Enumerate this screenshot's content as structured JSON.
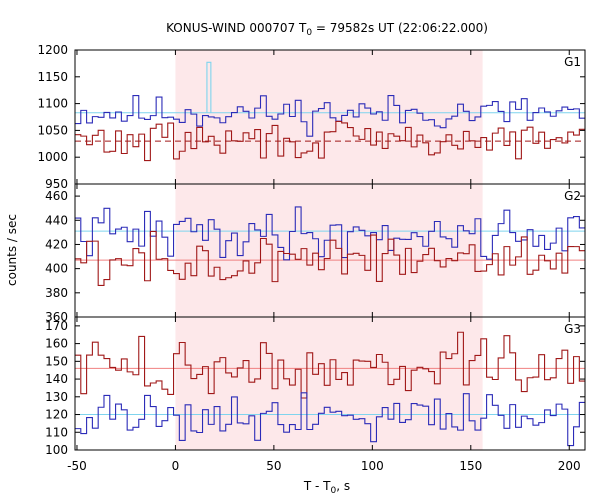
{
  "chart_data": {
    "type": "line",
    "title": "KONUS-WIND 000707 T₀ = 79582s UT (22:06:22.000)",
    "title_parts": {
      "prefix": "KONUS-WIND 000707 T",
      "subscript": "0",
      "suffix": " = 79582s UT (22:06:22.000)"
    },
    "xlabel_parts": {
      "prefix": "T - T",
      "subscript": "0",
      "suffix": ", s"
    },
    "ylabel": "counts / sec",
    "xlim": [
      -51,
      208
    ],
    "x_ticks": [
      -50,
      0,
      50,
      100,
      150,
      200
    ],
    "x_tick_labels": [
      "-50",
      "0",
      "50",
      "100",
      "150",
      "200"
    ],
    "highlight_interval": [
      0,
      156
    ],
    "highlight_color": "#fde8ea",
    "panels": [
      {
        "label": "G1",
        "ylim": [
          950,
          1200
        ],
        "y_ticks": [
          950,
          1000,
          1050,
          1100,
          1150,
          1200
        ],
        "y_tick_labels": [
          "950",
          "1000",
          "1050",
          "1100",
          "1150",
          "1200"
        ],
        "series": [
          {
            "color": "#2b2bb8",
            "background": 1083,
            "background_color": "#7fd4ee",
            "background_style": "solid",
            "mean": 1083,
            "amplitude": 16,
            "seed": 11
          },
          {
            "color": "#a01818",
            "background": 1030,
            "background_color": "#a01818",
            "background_style": "dashed",
            "mean": 1030,
            "amplitude": 18,
            "seed": 29
          },
          {
            "color": "#7fd4ee",
            "type": "spike",
            "x": [
              16,
              18
            ],
            "baseline": 1083,
            "peak": 1177
          }
        ]
      },
      {
        "label": "G2",
        "ylim": [
          360,
          470
        ],
        "y_ticks": [
          360,
          380,
          400,
          420,
          440,
          460
        ],
        "y_tick_labels": [
          "360",
          "380",
          "400",
          "420",
          "440",
          "460"
        ],
        "series": [
          {
            "color": "#2b2bb8",
            "background": 431,
            "background_color": "#7fd4ee",
            "background_style": "solid",
            "mean": 429,
            "amplitude": 10,
            "seed": 41
          },
          {
            "color": "#a01818",
            "background": 407,
            "background_color": "#f08080",
            "background_style": "solid",
            "mean": 407,
            "amplitude": 10,
            "seed": 57
          }
        ]
      },
      {
        "label": "G3",
        "ylim": [
          100,
          175
        ],
        "y_ticks": [
          100,
          110,
          120,
          130,
          140,
          150,
          160,
          170
        ],
        "y_tick_labels": [
          "100",
          "110",
          "120",
          "130",
          "140",
          "150",
          "160",
          "170"
        ],
        "series": [
          {
            "color": "#a01818",
            "background": 146,
            "background_color": "#f08080",
            "background_style": "solid",
            "mean": 146,
            "amplitude": 8,
            "seed": 73
          },
          {
            "color": "#2b2bb8",
            "background": 120,
            "background_color": "#7fd4ee",
            "background_style": "solid",
            "mean": 120,
            "amplitude": 7,
            "seed": 91
          }
        ]
      }
    ]
  }
}
